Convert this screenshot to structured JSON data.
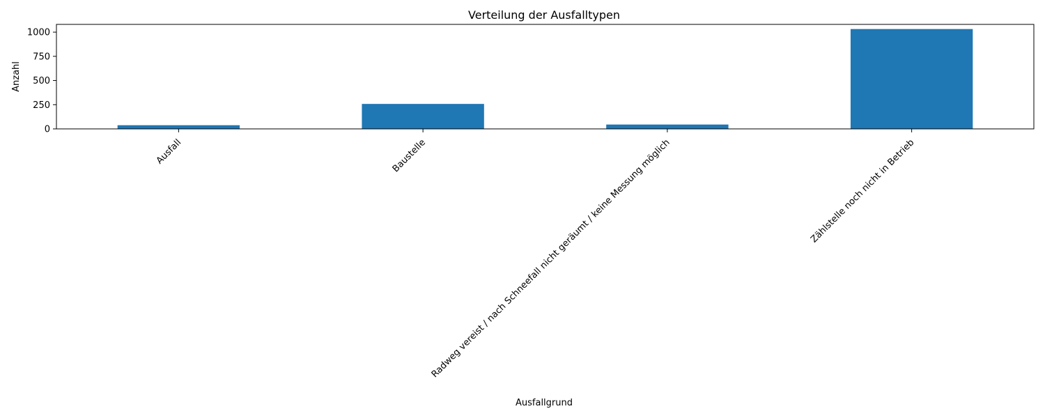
{
  "chart_data": {
    "type": "bar",
    "title": "Verteilung der Ausfalltypen",
    "xlabel": "Ausfallgrund",
    "ylabel": "Anzahl",
    "categories": [
      "Ausfall",
      "Baustelle",
      "Radweg vereist / nach Schneefall nicht geräumt / keine Messung möglich",
      "Zählstelle noch nicht in Betrieb"
    ],
    "values": [
      38,
      258,
      45,
      1032
    ],
    "ylim": [
      0,
      1080
    ],
    "yticks": [
      "0",
      "250",
      "500",
      "750",
      "1000"
    ],
    "bar_color": "#1f77b4",
    "grid": false,
    "legend": false
  }
}
